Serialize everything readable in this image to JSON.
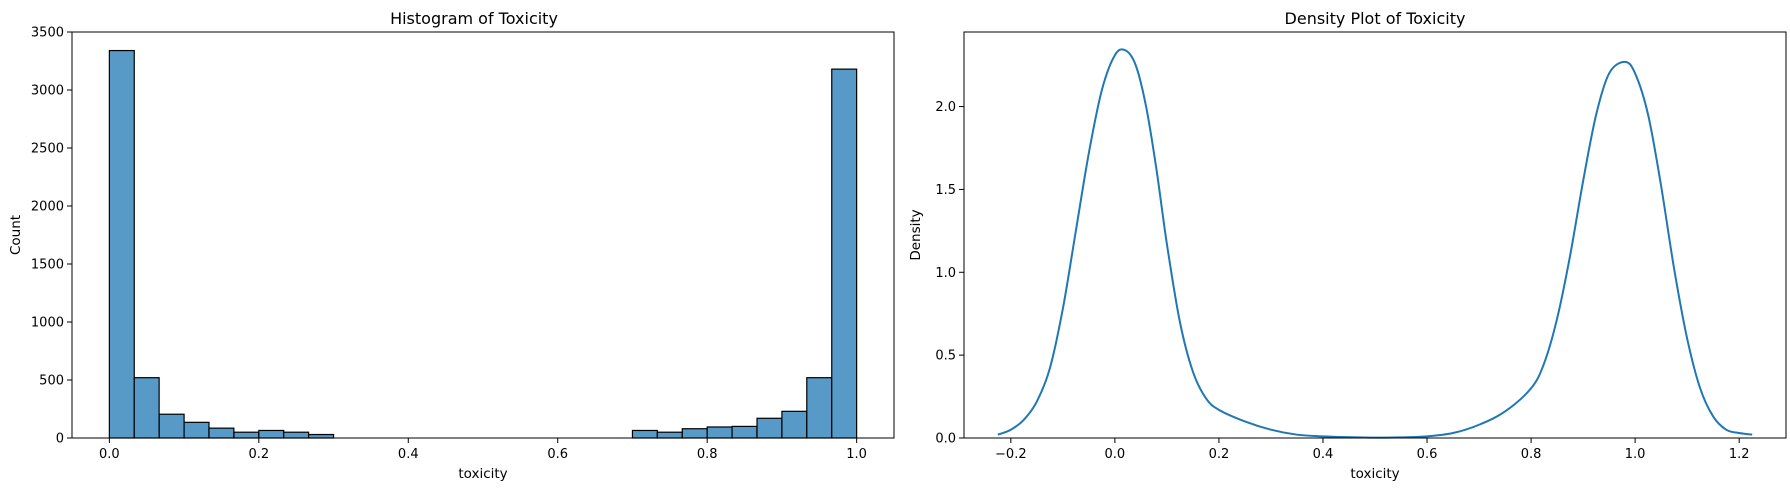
{
  "chart_data": [
    {
      "type": "bar",
      "title": "Histogram of Toxicity",
      "xlabel": "toxicity",
      "ylabel": "Count",
      "xlim": [
        -0.05,
        1.05
      ],
      "ylim": [
        0,
        3500
      ],
      "xticks": [
        "0.0",
        "0.2",
        "0.4",
        "0.6",
        "0.8",
        "1.0"
      ],
      "xtick_values": [
        0.0,
        0.2,
        0.4,
        0.6,
        0.8,
        1.0
      ],
      "yticks": [
        "0",
        "500",
        "1000",
        "1500",
        "2000",
        "2500",
        "3000",
        "3500"
      ],
      "ytick_values": [
        0,
        500,
        1000,
        1500,
        2000,
        2500,
        3000,
        3500
      ],
      "bin_width": 0.0333,
      "bin_starts": [
        0.0,
        0.0333,
        0.0667,
        0.1,
        0.1333,
        0.1667,
        0.2,
        0.2333,
        0.2667,
        0.3,
        0.3333,
        0.3667,
        0.4,
        0.4333,
        0.4667,
        0.5,
        0.5333,
        0.5667,
        0.6,
        0.6333,
        0.6667,
        0.7,
        0.7333,
        0.7667,
        0.8,
        0.8333,
        0.8667,
        0.9,
        0.9333,
        0.9667
      ],
      "values": [
        3340,
        520,
        205,
        135,
        85,
        50,
        65,
        50,
        30,
        0,
        0,
        0,
        0,
        0,
        0,
        0,
        0,
        0,
        0,
        0,
        0,
        65,
        50,
        80,
        95,
        100,
        170,
        230,
        520,
        3180
      ],
      "bar_color": "#5799c7",
      "edge_color": "#000000",
      "grid": false
    },
    {
      "type": "line",
      "title": "Density Plot of Toxicity",
      "xlabel": "toxicity",
      "ylabel": "Density",
      "xlim": [
        -0.29,
        1.29
      ],
      "ylim": [
        0,
        2.45
      ],
      "xticks": [
        "−0.2",
        "0.0",
        "0.2",
        "0.4",
        "0.6",
        "0.8",
        "1.0",
        "1.2"
      ],
      "xtick_values": [
        -0.2,
        0.0,
        0.2,
        0.4,
        0.6,
        0.8,
        1.0,
        1.2
      ],
      "yticks": [
        "0.0",
        "0.5",
        "1.0",
        "1.5",
        "2.0"
      ],
      "ytick_values": [
        0.0,
        0.5,
        1.0,
        1.5,
        2.0
      ],
      "line_color": "#1f77b4",
      "grid": false,
      "x": [
        -0.225,
        -0.2,
        -0.175,
        -0.15,
        -0.125,
        -0.1,
        -0.075,
        -0.05,
        -0.025,
        0.0,
        0.02,
        0.04,
        0.06,
        0.08,
        0.1,
        0.125,
        0.15,
        0.175,
        0.2,
        0.25,
        0.3,
        0.35,
        0.4,
        0.45,
        0.5,
        0.55,
        0.6,
        0.65,
        0.7,
        0.75,
        0.8,
        0.825,
        0.85,
        0.875,
        0.9,
        0.925,
        0.95,
        0.98,
        1.0,
        1.025,
        1.05,
        1.075,
        1.1,
        1.125,
        1.15,
        1.175,
        1.2,
        1.225
      ],
      "y": [
        0.02,
        0.05,
        0.11,
        0.22,
        0.42,
        0.78,
        1.25,
        1.72,
        2.1,
        2.31,
        2.34,
        2.25,
        2.0,
        1.62,
        1.17,
        0.7,
        0.4,
        0.24,
        0.17,
        0.1,
        0.05,
        0.02,
        0.01,
        0.005,
        0.002,
        0.004,
        0.01,
        0.03,
        0.08,
        0.16,
        0.3,
        0.45,
        0.72,
        1.1,
        1.55,
        1.95,
        2.2,
        2.27,
        2.2,
        1.95,
        1.52,
        1.02,
        0.6,
        0.3,
        0.13,
        0.05,
        0.03,
        0.02
      ]
    }
  ]
}
